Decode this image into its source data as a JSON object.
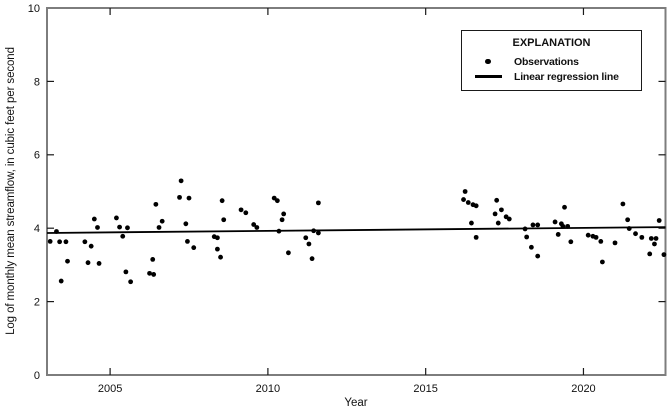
{
  "axes": {
    "x_label": "Year",
    "y_label": "Log of monthly mean streamflow, in cubic feet per second"
  },
  "legend": {
    "title": "EXPLANATION",
    "items": [
      {
        "icon": "dot-marker",
        "label": "Observations"
      },
      {
        "icon": "line-marker",
        "label": "Linear regression line"
      }
    ]
  },
  "colors": {
    "background": "#ffffff",
    "frame": "#7d7d7d",
    "tick": "#1a1a1a",
    "data": "#000000",
    "text": "#111111"
  },
  "chart_data": {
    "type": "scatter",
    "title": "",
    "xlabel": "Year",
    "ylabel": "Log of monthly mean streamflow, in cubic feet per second",
    "xlim": [
      2003.0,
      2022.6
    ],
    "ylim": [
      0,
      10
    ],
    "x_ticks": [
      2005,
      2010,
      2015,
      2020
    ],
    "y_ticks": [
      0,
      2,
      4,
      6,
      8,
      10
    ],
    "grid": false,
    "legend_position": "upper-right-inside",
    "series": [
      {
        "name": "Observations",
        "type": "scatter",
        "points": [
          [
            2003.1,
            3.64
          ],
          [
            2003.3,
            3.91
          ],
          [
            2003.4,
            3.63
          ],
          [
            2003.6,
            3.63
          ],
          [
            2003.45,
            2.56
          ],
          [
            2003.65,
            3.1
          ],
          [
            2004.2,
            3.63
          ],
          [
            2004.3,
            3.06
          ],
          [
            2004.4,
            3.51
          ],
          [
            2004.5,
            4.25
          ],
          [
            2004.6,
            4.02
          ],
          [
            2004.65,
            3.04
          ],
          [
            2005.2,
            4.28
          ],
          [
            2005.3,
            4.03
          ],
          [
            2005.4,
            3.78
          ],
          [
            2005.5,
            2.81
          ],
          [
            2005.55,
            4.01
          ],
          [
            2005.65,
            2.54
          ],
          [
            2006.25,
            2.77
          ],
          [
            2006.38,
            2.74
          ],
          [
            2006.35,
            3.15
          ],
          [
            2006.45,
            4.65
          ],
          [
            2006.55,
            4.02
          ],
          [
            2006.65,
            4.19
          ],
          [
            2007.25,
            5.29
          ],
          [
            2007.2,
            4.84
          ],
          [
            2007.5,
            4.82
          ],
          [
            2007.4,
            4.12
          ],
          [
            2007.45,
            3.64
          ],
          [
            2007.65,
            3.47
          ],
          [
            2008.3,
            3.77
          ],
          [
            2008.4,
            3.74
          ],
          [
            2008.4,
            3.43
          ],
          [
            2008.5,
            3.21
          ],
          [
            2008.55,
            4.75
          ],
          [
            2008.6,
            4.23
          ],
          [
            2009.15,
            4.5
          ],
          [
            2009.3,
            4.42
          ],
          [
            2009.55,
            4.1
          ],
          [
            2009.65,
            4.02
          ],
          [
            2010.2,
            4.82
          ],
          [
            2010.3,
            4.75
          ],
          [
            2010.45,
            4.23
          ],
          [
            2010.5,
            4.39
          ],
          [
            2010.35,
            3.92
          ],
          [
            2010.65,
            3.33
          ],
          [
            2011.2,
            3.74
          ],
          [
            2011.3,
            3.57
          ],
          [
            2011.4,
            3.17
          ],
          [
            2011.45,
            3.93
          ],
          [
            2011.6,
            3.87
          ],
          [
            2011.6,
            4.69
          ],
          [
            2016.25,
            5.0
          ],
          [
            2016.2,
            4.78
          ],
          [
            2016.35,
            4.7
          ],
          [
            2016.5,
            4.64
          ],
          [
            2016.6,
            4.61
          ],
          [
            2016.45,
            4.14
          ],
          [
            2016.6,
            3.75
          ],
          [
            2017.25,
            4.76
          ],
          [
            2017.4,
            4.5
          ],
          [
            2017.2,
            4.39
          ],
          [
            2017.55,
            4.31
          ],
          [
            2017.65,
            4.25
          ],
          [
            2017.3,
            4.14
          ],
          [
            2018.15,
            3.98
          ],
          [
            2018.4,
            4.09
          ],
          [
            2018.55,
            4.09
          ],
          [
            2018.2,
            3.76
          ],
          [
            2018.35,
            3.48
          ],
          [
            2018.55,
            3.24
          ],
          [
            2019.1,
            4.17
          ],
          [
            2019.3,
            4.12
          ],
          [
            2019.35,
            4.05
          ],
          [
            2019.5,
            4.05
          ],
          [
            2019.4,
            4.57
          ],
          [
            2019.2,
            3.83
          ],
          [
            2019.6,
            3.63
          ],
          [
            2020.15,
            3.81
          ],
          [
            2020.3,
            3.78
          ],
          [
            2020.4,
            3.75
          ],
          [
            2020.55,
            3.64
          ],
          [
            2020.6,
            3.08
          ],
          [
            2021.0,
            3.6
          ],
          [
            2021.25,
            4.66
          ],
          [
            2021.4,
            4.23
          ],
          [
            2021.45,
            3.99
          ],
          [
            2021.65,
            3.85
          ],
          [
            2021.85,
            3.75
          ],
          [
            2022.15,
            3.72
          ],
          [
            2022.3,
            3.72
          ],
          [
            2022.25,
            3.57
          ],
          [
            2022.1,
            3.3
          ],
          [
            2022.55,
            3.28
          ],
          [
            2022.4,
            4.21
          ]
        ]
      },
      {
        "name": "Linear regression line",
        "type": "line",
        "points": [
          [
            2003.0,
            3.87
          ],
          [
            2022.6,
            4.03
          ]
        ]
      }
    ]
  }
}
